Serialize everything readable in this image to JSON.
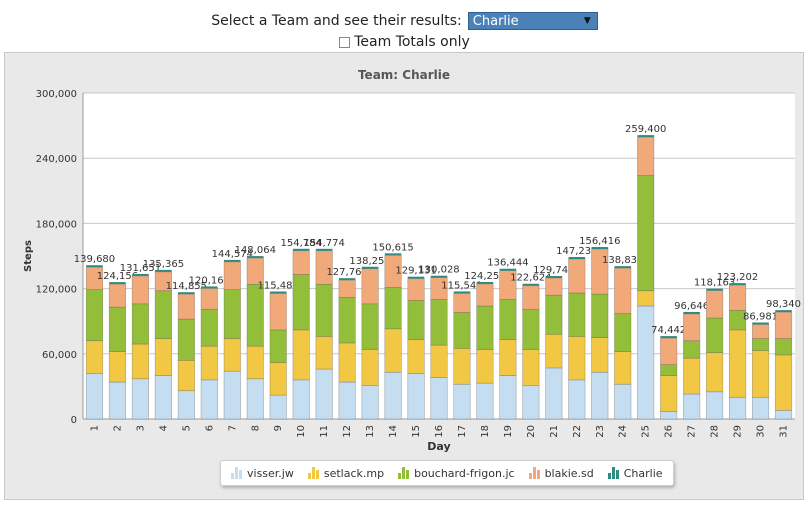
{
  "controls": {
    "select_label": "Select a Team and see their results:",
    "selected_team": "Charlie",
    "totals_label": "Team Totals only"
  },
  "colors": {
    "visser": "#c4ddf0",
    "setlack": "#f2c744",
    "bouchard": "#93be3a",
    "blakie": "#f2a97a",
    "charlie": "#2e8b82"
  },
  "chart_data": {
    "type": "bar",
    "stacked": true,
    "title": "Team: Charlie",
    "xlabel": "Day",
    "ylabel": "Steps",
    "ylim": [
      0,
      300000
    ],
    "yticks": [
      "0",
      "60,000",
      "120,000",
      "180,000",
      "240,000",
      "300,000"
    ],
    "ytick_values": [
      0,
      60000,
      120000,
      180000,
      240000,
      300000
    ],
    "categories": [
      "1",
      "2",
      "3",
      "4",
      "5",
      "6",
      "7",
      "8",
      "9",
      "10",
      "11",
      "12",
      "13",
      "14",
      "15",
      "16",
      "17",
      "18",
      "19",
      "20",
      "21",
      "22",
      "23",
      "24",
      "25",
      "26",
      "27",
      "28",
      "29",
      "30",
      "31"
    ],
    "totals": [
      "139,680",
      "124,156",
      "131,651",
      "135,365",
      "114,855",
      "120,163",
      "144,574",
      "148,064",
      "115,488",
      "154,784",
      "154,774",
      "127,763",
      "138,255",
      "150,615",
      "129,131",
      "130,028",
      "115,541",
      "124,254",
      "136,444",
      "122,624",
      "129,746",
      "147,231",
      "156,416",
      "138,835",
      "259,400",
      "74,442",
      "96,646",
      "118,163",
      "123,202",
      "86,981",
      "98,340"
    ],
    "series": [
      {
        "name": "visser.jw",
        "values": [
          42000,
          34000,
          37000,
          40000,
          26000,
          36000,
          44000,
          37000,
          22000,
          36000,
          46000,
          34000,
          31000,
          43000,
          42000,
          38000,
          32000,
          33000,
          40000,
          31000,
          47000,
          36000,
          43000,
          32000,
          104000,
          7000,
          23000,
          25000,
          20000,
          20000,
          8000
        ]
      },
      {
        "name": "setlack.mp",
        "values": [
          30000,
          28000,
          32000,
          34000,
          28000,
          31000,
          30000,
          30000,
          30000,
          46000,
          30000,
          36000,
          33000,
          40000,
          31000,
          30000,
          33000,
          31000,
          33000,
          33000,
          31000,
          40000,
          32000,
          30000,
          14000,
          33000,
          33000,
          36000,
          62000,
          43000,
          51000
        ]
      },
      {
        "name": "bouchard-frigon.jc",
        "values": [
          47000,
          41000,
          37000,
          44000,
          38000,
          34000,
          45000,
          57000,
          30000,
          51000,
          48000,
          42000,
          42000,
          38000,
          36000,
          42000,
          33000,
          40000,
          37000,
          37000,
          36000,
          40000,
          40000,
          35000,
          106000,
          10000,
          16000,
          32000,
          18000,
          11000,
          15000
        ]
      },
      {
        "name": "blakie.sd",
        "values": [
          20680,
          21156,
          25651,
          17365,
          22855,
          19163,
          25574,
          24064,
          33488,
          21784,
          30774,
          15763,
          32255,
          29615,
          20131,
          20028,
          17541,
          20254,
          26444,
          21624,
          15746,
          31231,
          41416,
          41835,
          35400,
          24442,
          24646,
          25163,
          23202,
          12981,
          24340
        ]
      },
      {
        "name": "Charlie",
        "values": [
          0,
          0,
          0,
          0,
          0,
          0,
          0,
          0,
          0,
          0,
          0,
          0,
          0,
          0,
          0,
          0,
          0,
          0,
          0,
          0,
          0,
          0,
          0,
          0,
          0,
          0,
          0,
          0,
          0,
          0,
          0
        ]
      }
    ],
    "grid": true,
    "legend": "bottom-center"
  }
}
